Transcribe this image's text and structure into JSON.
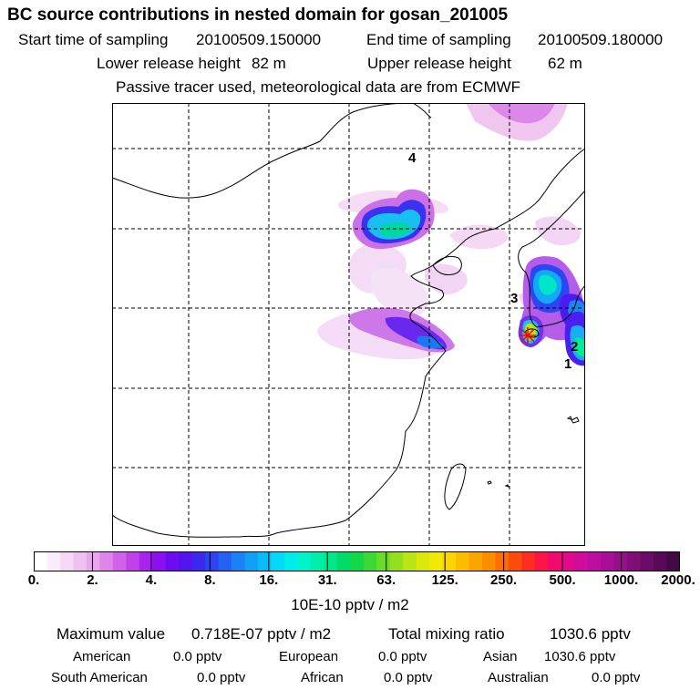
{
  "title": "BC  source contributions in nested domain for gosan_201005",
  "sampling": {
    "start_label": "Start time of sampling",
    "start_value": "20100509.150000",
    "end_label": "End time of sampling",
    "end_value": "20100509.180000"
  },
  "release": {
    "lower_label": "Lower release height",
    "lower_value": "82 m",
    "upper_label": "Upper release height",
    "upper_value": "62 m"
  },
  "note": "Passive tracer used, meteorological data are from ECMWF",
  "map": {
    "markers": [
      {
        "label": "4",
        "lon": 117.5,
        "lat": 42.6
      },
      {
        "label": "3",
        "lon": 125.0,
        "lat": 35.7
      },
      {
        "label": "2",
        "lon": 128.3,
        "lat": 34.7
      },
      {
        "label": "1",
        "lon": 128.0,
        "lat": 34.4
      }
    ],
    "receptor": {
      "name": "gosan",
      "lon": 126.2,
      "lat": 33.3
    }
  },
  "colorbar": {
    "ticks": [
      "0.",
      "2.",
      "4.",
      "8.",
      "16.",
      "31.",
      "63.",
      "125.",
      "250.",
      "500.",
      "1000.",
      "2000."
    ],
    "colors": [
      "#ffffff",
      "#fbecfb",
      "#f6d8f6",
      "#f0c0f0",
      "#e9a6ee",
      "#dd85ea",
      "#d061e8",
      "#c040ea",
      "#a822f0",
      "#8a10f2",
      "#6d0cf2",
      "#5414f0",
      "#3c28f0",
      "#2c44f2",
      "#2462f4",
      "#1a82f4",
      "#10a0f6",
      "#08bcf8",
      "#04d8f4",
      "#00ecea",
      "#00f4cc",
      "#00eeaa",
      "#00e688",
      "#00dc66",
      "#14d64a",
      "#3cd836",
      "#6adc28",
      "#94e01c",
      "#bce414",
      "#dce80c",
      "#f2e806",
      "#fcd400",
      "#fcbc00",
      "#fca400",
      "#fc8c00",
      "#fc6e00",
      "#fc4c0c",
      "#fc2c20",
      "#fc1448",
      "#f00a70",
      "#e20a8c",
      "#d00c9c",
      "#bc0ea0",
      "#a80e98",
      "#941088",
      "#800e78",
      "#6c0c68",
      "#580a58",
      "#440a48"
    ],
    "units": "10E-10 pptv / m2"
  },
  "stats": {
    "max_label": "Maximum value",
    "max_value": "0.718E-07 pptv / m2",
    "total_label": "Total mixing ratio",
    "total_value": "1030.6 pptv",
    "regions": [
      {
        "name": "American",
        "value": "0.0 pptv"
      },
      {
        "name": "European",
        "value": "0.0 pptv"
      },
      {
        "name": "Asian",
        "value": "1030.6 pptv"
      },
      {
        "name": "South American",
        "value": "0.0 pptv"
      },
      {
        "name": "African",
        "value": "0.0 pptv"
      },
      {
        "name": "Australian",
        "value": "0.0 pptv"
      }
    ]
  }
}
